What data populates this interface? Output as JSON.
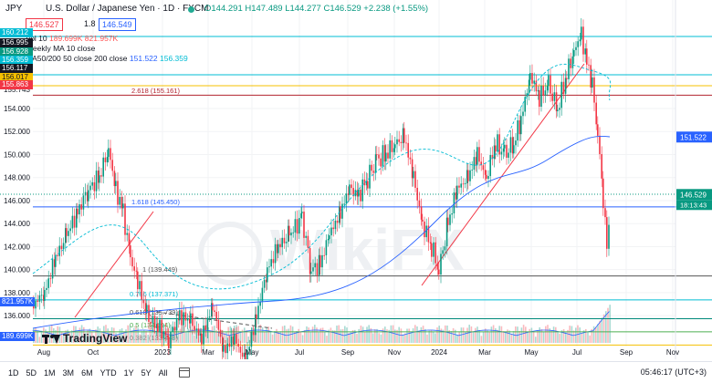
{
  "header": {
    "symbol": "JPY",
    "title": "U.S. Dollar / Japanese Yen · 1D · FXCM",
    "ohlc": "O144.291 H147.489 L144.277 C146.529 +2.238 (+1.55%)",
    "sell_price": "146.527",
    "spread": "1.8",
    "buy_price": "146.549"
  },
  "indicators": {
    "vol_label": "Vol 10",
    "vol_v1": "189.699K",
    "vol_v2": "821.957K",
    "weekly_ma": "Weekly MA 10 close",
    "ma_label": "MA50/200 50 close 200 close",
    "ma_v1": "151.522",
    "ma_v2": "156.359"
  },
  "left_labels": [
    {
      "text": "160.212",
      "color": "#00bcd4"
    },
    {
      "text": "156.995",
      "color": "#131722"
    },
    {
      "text": "156.928",
      "color": "#089981"
    },
    {
      "text": "156.359",
      "color": "#00bcd4"
    },
    {
      "text": "156.117",
      "color": "#131722"
    },
    {
      "text": "156.017",
      "color": "#f5c000"
    },
    {
      "text": "155.863",
      "color": "#f23645"
    }
  ],
  "price_axis": [
    "155.743",
    "154.000",
    "152.000",
    "150.000",
    "148.000",
    "146.000",
    "144.000",
    "142.000",
    "140.000",
    "138.000",
    "136.000"
  ],
  "current_price": "146.529",
  "countdown": "18:13:43",
  "ma_tag": "151.522",
  "vol_tag1": "821.957K",
  "vol_tag2": "189.699K",
  "fib_labels": [
    {
      "text": "2.618 (155.161)",
      "color": "#b2242f"
    },
    {
      "text": "1.618 (145.450)",
      "color": "#2962ff"
    },
    {
      "text": "1 (139.449)",
      "color": "#555555"
    },
    {
      "text": "0.786 (137.371)",
      "color": "#00bcd4"
    },
    {
      "text": "0.618 (135.739)",
      "color": "#555555"
    },
    {
      "text": "0.5 (134.594)",
      "color": "#4caf50"
    },
    {
      "text": "0.382 (133.448)",
      "color": "#888888"
    }
  ],
  "time_axis": [
    "Aug",
    "Oct",
    "2023",
    "Mar",
    "May",
    "Jul",
    "Sep",
    "Nov",
    "2024",
    "Mar",
    "May",
    "Jul",
    "Sep",
    "Nov"
  ],
  "watermark": "WikiFX",
  "tv_logo": "TradingView",
  "ranges": [
    "1D",
    "5D",
    "1M",
    "3M",
    "6M",
    "YTD",
    "1Y",
    "5Y",
    "All"
  ],
  "clock": "05:46:17 (UTC+3)"
}
